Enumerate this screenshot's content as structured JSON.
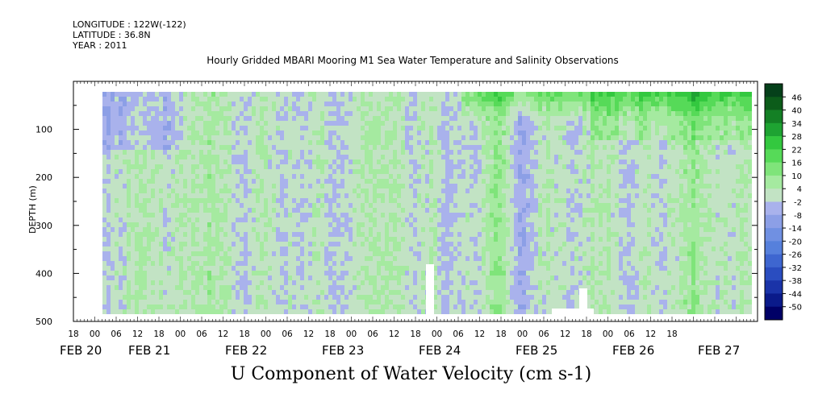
{
  "header": {
    "longitude": "LONGITUDE : 122W(-122)",
    "latitude": "LATITUDE : 36.8N",
    "year": "YEAR : 2011"
  },
  "title": "Hourly Gridded MBARI Mooring M1 Sea Water Temperature and Salinity Observations",
  "footer_label": "U Component of Water Velocity (cm s-1)",
  "chart_data": {
    "type": "heatmap",
    "title": "Hourly Gridded MBARI Mooring M1 Sea Water Temperature and Salinity Observations",
    "xlabel": "",
    "ylabel": "DEPTH (m)",
    "colorbar_label": "U Component of Water Velocity (cm s-1)",
    "y_range": [
      500,
      0
    ],
    "y_ticks": [
      100,
      200,
      300,
      400,
      500
    ],
    "x_hour_ticks": [
      "18",
      "00",
      "06",
      "12",
      "18",
      "00",
      "06",
      "12",
      "18",
      "00",
      "06",
      "12",
      "18",
      "00",
      "06",
      "12",
      "18",
      "00",
      "06",
      "12",
      "18",
      "00",
      "06",
      "12",
      "18",
      "00",
      "06",
      "12",
      "18"
    ],
    "x_day_labels": [
      "FEB 20",
      "FEB 21",
      "FEB 22",
      "FEB 23",
      "FEB 24",
      "FEB 25",
      "FEB 26",
      "FEB 27"
    ],
    "x_range": [
      "2011-02-19 18:00",
      "2011-02-27 18:00"
    ],
    "data_range": [
      "2011-02-20 06:00",
      "2011-02-27 18:00"
    ],
    "depth_range_data": [
      20,
      490
    ],
    "colorbar_levels": [
      -50,
      -44,
      -38,
      -32,
      -26,
      -20,
      -14,
      -8,
      -2,
      4,
      10,
      16,
      22,
      28,
      34,
      40,
      46
    ],
    "colorbar_colors": [
      "#000066",
      "#0a1a8a",
      "#1a33a8",
      "#2a4dc0",
      "#3e66d0",
      "#5680dc",
      "#7090e2",
      "#8c9fe6",
      "#a9b2ec",
      "#c2e3c4",
      "#a5eaa0",
      "#7fe47a",
      "#56da58",
      "#33c83f",
      "#1ea332",
      "#148025",
      "#0c5c1a",
      "#05401a"
    ],
    "grid": false,
    "notes_visible": "Field dominated by light green/green (positive) with vertical bands of light blue/purple (negative); strongest green near surface on FEB 25-27; white data gaps near 400-490 m around FEB 24 10:00 and FEB 25 18:00-26 00:00."
  }
}
